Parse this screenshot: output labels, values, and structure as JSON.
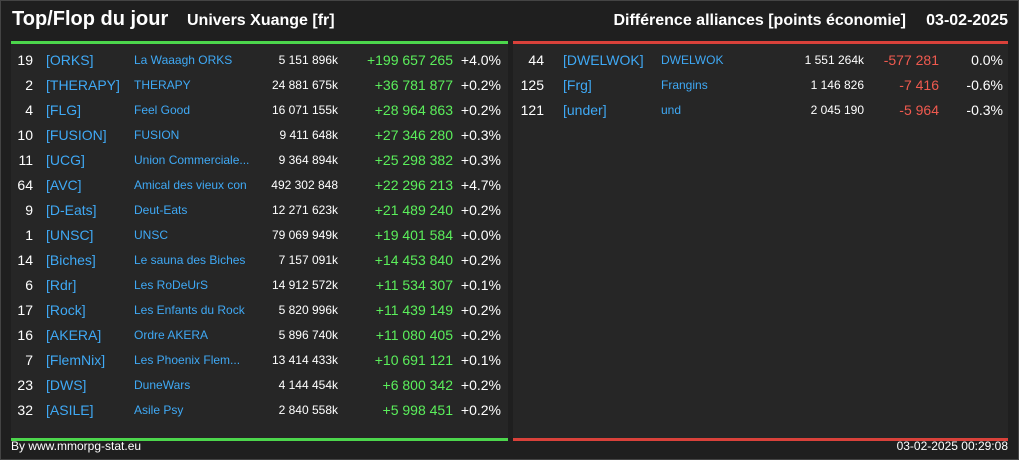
{
  "header": {
    "title": "Top/Flop du jour",
    "universe": "Univers Xuange [fr]",
    "right_title": "Différence alliances [points économie]",
    "date": "03-02-2025"
  },
  "colors": {
    "top": "#4cd64c",
    "flop": "#d9413a",
    "tag": "#3fa9f5"
  },
  "top": [
    {
      "rank": "19",
      "tag": "[ORKS]",
      "name": "La Waaagh ORKS",
      "points": "5 151 896k",
      "diff": "+199 657 265",
      "pct": "+4.0%"
    },
    {
      "rank": "2",
      "tag": "[THERAPY]",
      "name": "THERAPY",
      "points": "24 881 675k",
      "diff": "+36 781 877",
      "pct": "+0.2%"
    },
    {
      "rank": "4",
      "tag": "[FLG]",
      "name": "Feel Good",
      "points": "16 071 155k",
      "diff": "+28 964 863",
      "pct": "+0.2%"
    },
    {
      "rank": "10",
      "tag": "[FUSION]",
      "name": "FUSION",
      "points": "9 411 648k",
      "diff": "+27 346 280",
      "pct": "+0.3%"
    },
    {
      "rank": "11",
      "tag": "[UCG]",
      "name": "Union Commerciale...",
      "points": "9 364 894k",
      "diff": "+25 298 382",
      "pct": "+0.3%"
    },
    {
      "rank": "64",
      "tag": "[AVC]",
      "name": "Amical des vieux con",
      "points": "492 302 848",
      "diff": "+22 296 213",
      "pct": "+4.7%"
    },
    {
      "rank": "9",
      "tag": "[D-Eats]",
      "name": "Deut-Eats",
      "points": "12 271 623k",
      "diff": "+21 489 240",
      "pct": "+0.2%"
    },
    {
      "rank": "1",
      "tag": "[UNSC]",
      "name": "UNSC",
      "points": "79 069 949k",
      "diff": "+19 401 584",
      "pct": "+0.0%"
    },
    {
      "rank": "14",
      "tag": "[Biches]",
      "name": "Le sauna des Biches",
      "points": "7 157 091k",
      "diff": "+14 453 840",
      "pct": "+0.2%"
    },
    {
      "rank": "6",
      "tag": "[Rdr]",
      "name": "Les RoDeUrS",
      "points": "14 912 572k",
      "diff": "+11 534 307",
      "pct": "+0.1%"
    },
    {
      "rank": "17",
      "tag": "[Rock]",
      "name": "Les Enfants du Rock",
      "points": "5 820 996k",
      "diff": "+11 439 149",
      "pct": "+0.2%"
    },
    {
      "rank": "16",
      "tag": "[AKERA]",
      "name": "Ordre AKERA",
      "points": "5 896 740k",
      "diff": "+11 080 405",
      "pct": "+0.2%"
    },
    {
      "rank": "7",
      "tag": "[FlemNix]",
      "name": "Les Phoenix Flem...",
      "points": "13 414 433k",
      "diff": "+10 691 121",
      "pct": "+0.1%"
    },
    {
      "rank": "23",
      "tag": "[DWS]",
      "name": "DuneWars",
      "points": "4 144 454k",
      "diff": "+6 800 342",
      "pct": "+0.2%"
    },
    {
      "rank": "32",
      "tag": "[ASILE]",
      "name": "Asile Psy",
      "points": "2 840 558k",
      "diff": "+5 998 451",
      "pct": "+0.2%"
    }
  ],
  "flop": [
    {
      "rank": "44",
      "tag": "[DWELWOK]",
      "name": "DWELWOK",
      "points": "1 551 264k",
      "diff": "-577 281",
      "pct": "0.0%"
    },
    {
      "rank": "125",
      "tag": "[Frg]",
      "name": "Frangins",
      "points": "1 146 826",
      "diff": "-7 416",
      "pct": "-0.6%"
    },
    {
      "rank": "121",
      "tag": "[under]",
      "name": "und",
      "points": "2 045 190",
      "diff": "-5 964",
      "pct": "-0.3%"
    }
  ],
  "footer": {
    "source": "By www.mmorpg-stat.eu",
    "timestamp": "03-02-2025 00:29:08"
  }
}
